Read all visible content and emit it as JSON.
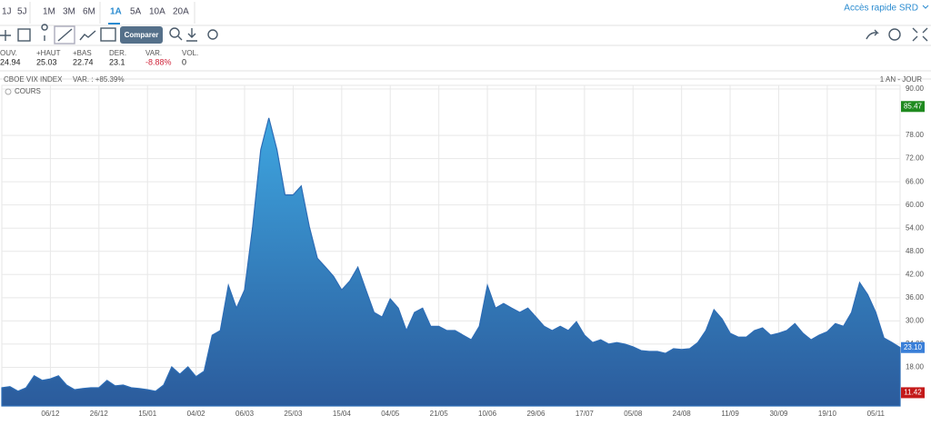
{
  "toolbar": {
    "periods": [
      "1J",
      "5J",
      "1M",
      "3M",
      "6M",
      "1A",
      "5A",
      "10A",
      "20A"
    ],
    "active_period": "1A",
    "quick_access": "Accès rapide SRD",
    "compare_button": "Comparer"
  },
  "quote": {
    "fields": [
      {
        "label": "OUV.",
        "value": "24.94"
      },
      {
        "label": "+HAUT",
        "value": "25.03"
      },
      {
        "label": "+BAS",
        "value": "22.74"
      },
      {
        "label": "DER.",
        "value": "23.1"
      },
      {
        "label": "VAR.",
        "value": "-8.88%"
      },
      {
        "label": "VOL.",
        "value": "0"
      }
    ]
  },
  "chart_data": {
    "type": "area",
    "title": "CBOE VIX INDEX",
    "subtitle": "VAR. : +85.39%",
    "period": "1 AN - JOUR",
    "categories": [
      null,
      null,
      null,
      null,
      null,
      null,
      "06/12",
      null,
      null,
      null,
      null,
      null,
      "26/12",
      null,
      null,
      null,
      null,
      null,
      "15/01",
      null,
      null,
      null,
      null,
      null,
      "04/02",
      null,
      null,
      null,
      null,
      null,
      "06/03",
      null,
      null,
      null,
      null,
      null,
      "25/03",
      null,
      null,
      null,
      null,
      null,
      "15/04",
      null,
      null,
      null,
      null,
      null,
      "04/05",
      null,
      null,
      null,
      null,
      null,
      "21/05",
      null,
      null,
      null,
      null,
      null,
      "10/06",
      null,
      null,
      null,
      null,
      null,
      "29/06",
      null,
      null,
      null,
      null,
      null,
      "17/07",
      null,
      null,
      null,
      null,
      null,
      "05/08",
      null,
      null,
      null,
      null,
      null,
      "24/08",
      null,
      null,
      null,
      null,
      null,
      "11/09",
      null,
      null,
      null,
      null,
      null,
      "30/09",
      null,
      null,
      null,
      null,
      null,
      "19/10",
      null,
      null,
      null,
      null,
      null,
      "05/11",
      null,
      null,
      null
    ],
    "series": [
      {
        "name": "COURS",
        "color": "#2d6cb5",
        "values": [
          12.7,
          13,
          11.8,
          12.7,
          15.8,
          14.6,
          15,
          15.8,
          13.4,
          12.2,
          12.5,
          12.7,
          12.7,
          14.6,
          13.2,
          13.4,
          12.7,
          12.5,
          12.2,
          11.8,
          13.4,
          18.1,
          16.2,
          18.1,
          15.6,
          17,
          26.3,
          27.5,
          39.2,
          33.3,
          38,
          54.4,
          74.3,
          82.5,
          74.3,
          62.6,
          62.6,
          64.9,
          54.4,
          46.2,
          43.9,
          41.5,
          38,
          40.3,
          43.9,
          38,
          32.2,
          31,
          35.7,
          33.3,
          27.5,
          32.2,
          33.3,
          28.6,
          28.6,
          27.5,
          27.5,
          26.3,
          25.1,
          28.6,
          39.2,
          33.3,
          34.5,
          33.3,
          32.2,
          33.3,
          31,
          28.6,
          27.5,
          28.6,
          27.5,
          29.8,
          26.3,
          24.4,
          25.1,
          24,
          24.4,
          24,
          23.3,
          22.3,
          22.1,
          22.1,
          21.6,
          22.8,
          22.6,
          22.8,
          24.4,
          27.5,
          32.9,
          30.5,
          26.8,
          25.8,
          25.8,
          27.5,
          28.2,
          26.3,
          26.8,
          27.5,
          29.3,
          26.8,
          25.1,
          26.3,
          27.2,
          29.3,
          28.6,
          32.2,
          39.9,
          36.8,
          32.2,
          25.6,
          24.4,
          23.1
        ]
      }
    ],
    "ylim": [
      8,
      90
    ],
    "yticks": [
      {
        "value": 18,
        "label": "18.00"
      },
      {
        "value": 24,
        "label": "24.00"
      },
      {
        "value": 30,
        "label": "30.00"
      },
      {
        "value": 36,
        "label": "36.00"
      },
      {
        "value": 42,
        "label": "42.00"
      },
      {
        "value": 48,
        "label": "48.00"
      },
      {
        "value": 54,
        "label": "54.00"
      },
      {
        "value": 60,
        "label": "60.00"
      },
      {
        "value": 66,
        "label": "66.00"
      },
      {
        "value": 72,
        "label": "72.00"
      },
      {
        "value": 78,
        "label": "78.00"
      },
      {
        "value": 90,
        "label": "90.00"
      }
    ],
    "markers": [
      {
        "value": 85.47,
        "color": "#1f8a1f"
      },
      {
        "value": 23.1,
        "label": "23.10",
        "color": "#3a7fd8"
      },
      {
        "value": 11.42,
        "color": "#c41a1a"
      }
    ],
    "grid": true
  }
}
